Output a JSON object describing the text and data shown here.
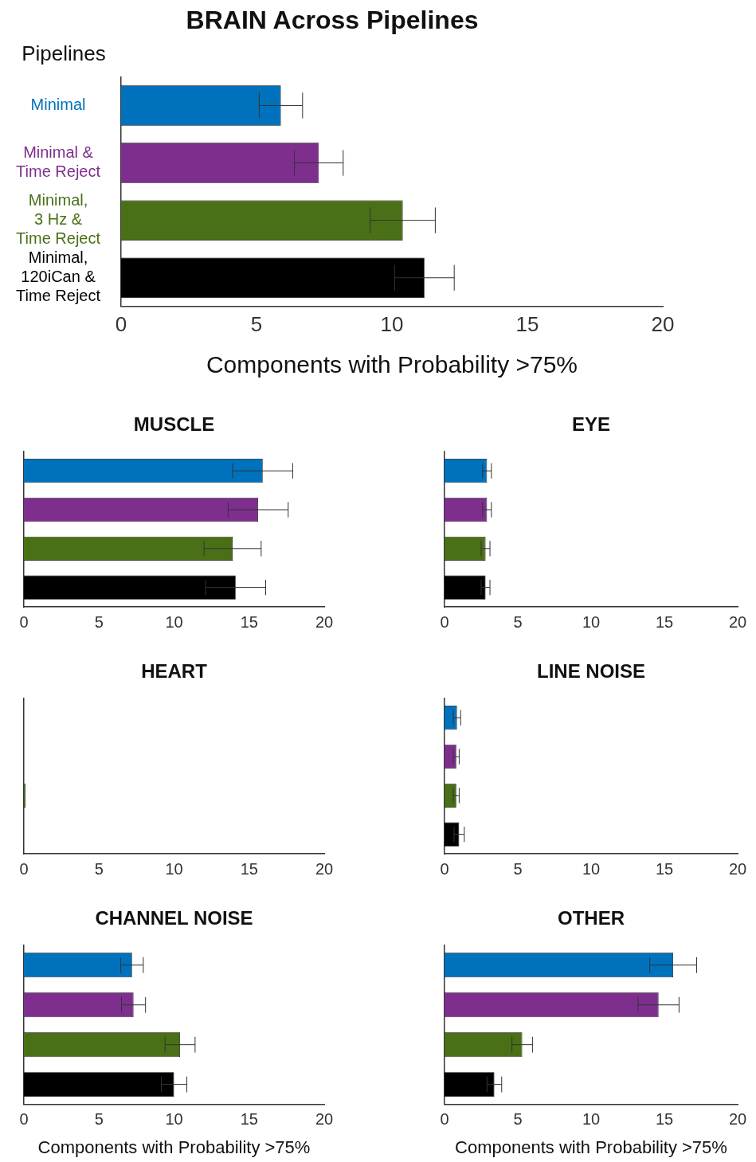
{
  "chart_data": [
    {
      "type": "bar",
      "orientation": "horizontal",
      "title": "BRAIN Across Pipelines",
      "legend_title": "Pipelines",
      "xlabel": "Components with Probability >75%",
      "categories": [
        "Minimal",
        "Minimal &\nTime Reject",
        "Minimal,\n3 Hz &\nTime Reject",
        "Minimal,\n120iCan &\nTime Reject"
      ],
      "values": [
        5.9,
        7.3,
        10.4,
        11.2
      ],
      "errors": [
        0.8,
        0.9,
        1.2,
        1.1
      ],
      "colors": [
        "#0072bd",
        "#7e2f8e",
        "#4a7017",
        "#000000"
      ],
      "xlim": [
        0,
        20
      ],
      "xticks": [
        0,
        5,
        10,
        15,
        20
      ],
      "legend": false
    },
    {
      "type": "bar",
      "orientation": "horizontal",
      "title": "MUSCLE",
      "categories": [
        null,
        null,
        null,
        null
      ],
      "values": [
        15.9,
        15.6,
        13.9,
        14.1
      ],
      "errors": [
        2.0,
        2.0,
        1.9,
        2.0
      ],
      "colors": [
        "#0072bd",
        "#7e2f8e",
        "#4a7017",
        "#000000"
      ],
      "xlim": [
        0,
        20
      ],
      "xticks": [
        0,
        5,
        10,
        15,
        20
      ],
      "tick_labels": "x",
      "legend": false
    },
    {
      "type": "bar",
      "orientation": "horizontal",
      "title": "EYE",
      "categories": [
        null,
        null,
        null,
        null
      ],
      "values": [
        2.9,
        2.9,
        2.8,
        2.8
      ],
      "errors": [
        0.3,
        0.3,
        0.3,
        0.3
      ],
      "colors": [
        "#0072bd",
        "#7e2f8e",
        "#4a7017",
        "#000000"
      ],
      "xlim": [
        0,
        20
      ],
      "xticks": [
        0,
        5,
        10,
        15,
        20
      ],
      "tick_labels": "x",
      "legend": false
    },
    {
      "type": "bar",
      "orientation": "horizontal",
      "title": "HEART",
      "categories": [
        null,
        null,
        null,
        null
      ],
      "values": [
        0,
        0,
        0.1,
        0
      ],
      "errors": [
        null,
        null,
        null,
        null
      ],
      "colors": [
        "#0072bd",
        "#7e2f8e",
        "#4a7017",
        "#000000"
      ],
      "xlim": [
        0,
        20
      ],
      "xticks": [
        0,
        5,
        10,
        15,
        20
      ],
      "tick_labels": "x",
      "legend": false
    },
    {
      "type": "bar",
      "orientation": "horizontal",
      "title": "LINE NOISE",
      "categories": [
        null,
        null,
        null,
        null
      ],
      "values": [
        0.85,
        0.8,
        0.8,
        1.0
      ],
      "errors": [
        0.25,
        0.2,
        0.2,
        0.35
      ],
      "colors": [
        "#0072bd",
        "#7e2f8e",
        "#4a7017",
        "#000000"
      ],
      "xlim": [
        0,
        20
      ],
      "xticks": [
        0,
        5,
        10,
        15,
        20
      ],
      "tick_labels": "x",
      "legend": false
    },
    {
      "type": "bar",
      "orientation": "horizontal",
      "title": "CHANNEL NOISE",
      "xlabel": "Components with Probability >75%",
      "categories": [
        null,
        null,
        null,
        null
      ],
      "values": [
        7.2,
        7.3,
        10.4,
        10.0
      ],
      "errors": [
        0.75,
        0.8,
        1.0,
        0.85
      ],
      "colors": [
        "#0072bd",
        "#7e2f8e",
        "#4a7017",
        "#000000"
      ],
      "xlim": [
        0,
        20
      ],
      "xticks": [
        0,
        5,
        10,
        15,
        20
      ],
      "tick_labels": "x",
      "legend": false
    },
    {
      "type": "bar",
      "orientation": "horizontal",
      "title": "OTHER",
      "xlabel": "Components with Probability >75%",
      "categories": [
        null,
        null,
        null,
        null
      ],
      "values": [
        15.6,
        14.6,
        5.3,
        3.4
      ],
      "errors": [
        1.6,
        1.4,
        0.7,
        0.5
      ],
      "colors": [
        "#0072bd",
        "#7e2f8e",
        "#4a7017",
        "#000000"
      ],
      "xlim": [
        0,
        20
      ],
      "xticks": [
        0,
        5,
        10,
        15,
        20
      ],
      "tick_labels": "x",
      "legend": false
    }
  ]
}
